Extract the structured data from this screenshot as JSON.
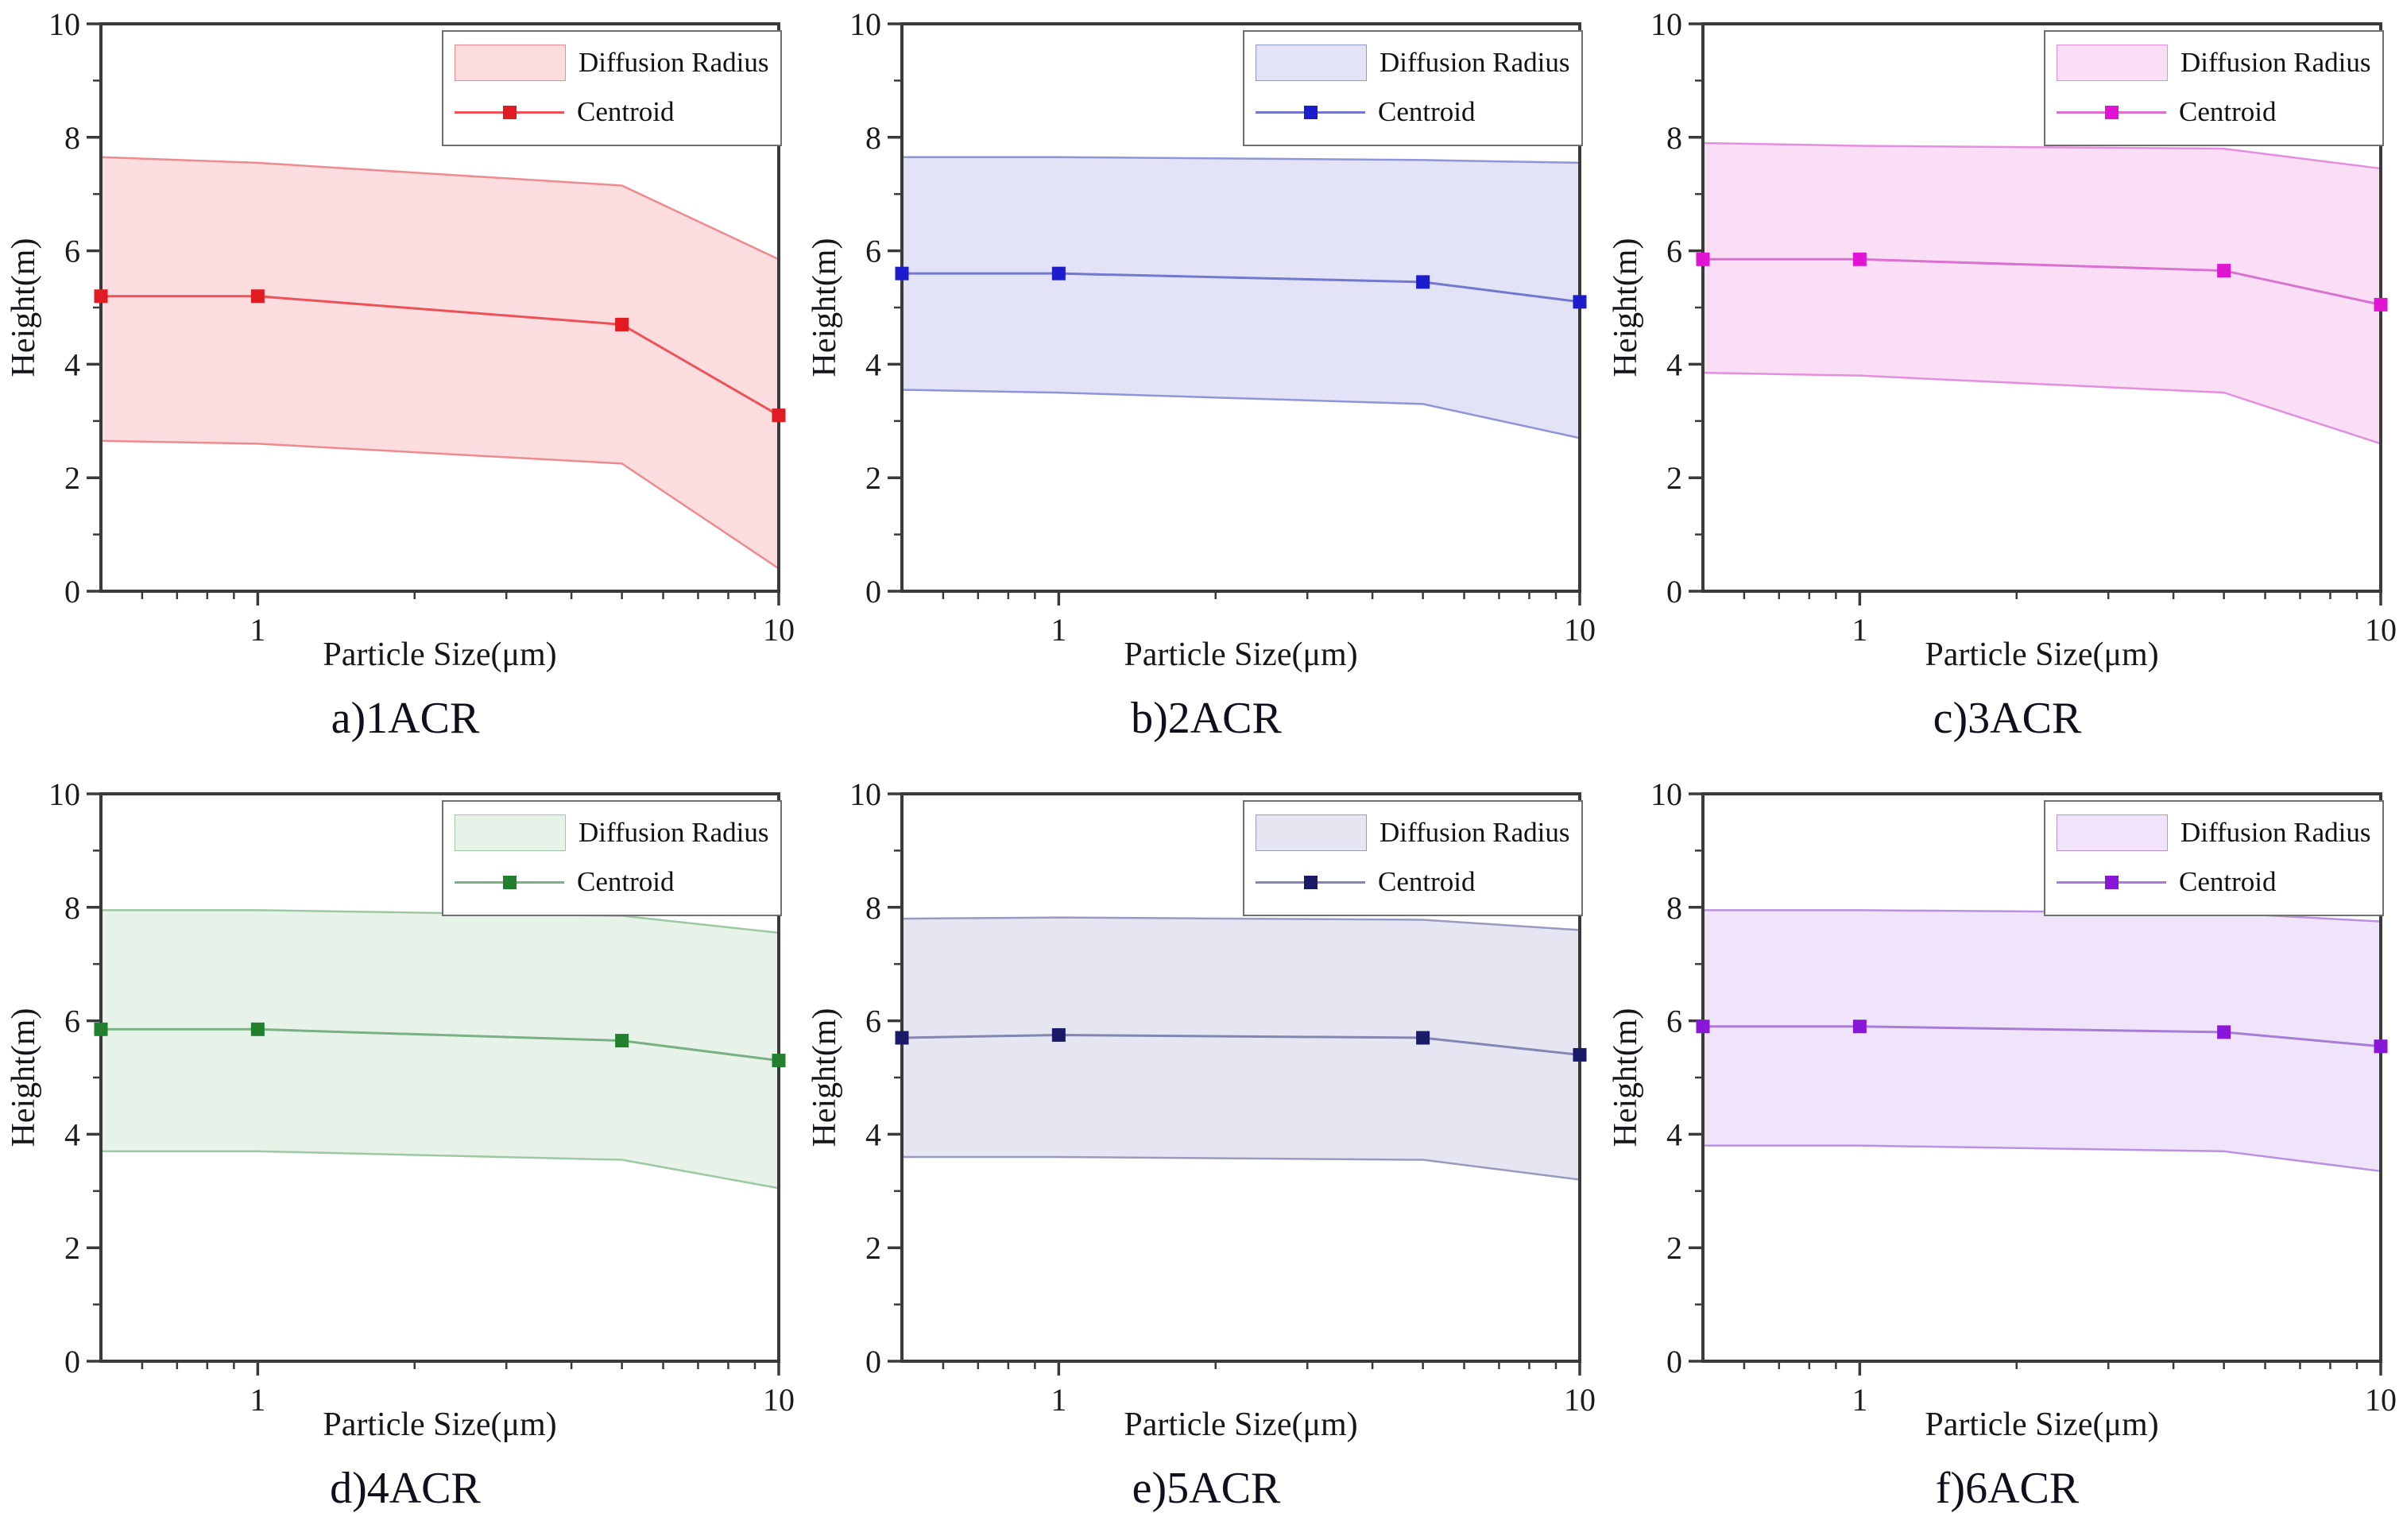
{
  "figure": {
    "xlabel": "Particle Size(μm)",
    "ylabel": "Height(m)",
    "legend_band_label": "Diffusion Radius",
    "legend_line_label": "Centroid",
    "axis_color": "#3a3a3a"
  },
  "chart_data": [
    {
      "id": "a",
      "caption": "a)1ACR",
      "type": "area",
      "x": [
        0.5,
        1,
        5,
        10
      ],
      "xscale": "log",
      "band_upper": [
        7.65,
        7.55,
        7.15,
        5.85
      ],
      "centroid": [
        5.2,
        5.2,
        4.7,
        3.1
      ],
      "band_lower": [
        2.65,
        2.6,
        2.25,
        0.4
      ],
      "xlim": [
        0.5,
        10
      ],
      "ylim": [
        0,
        10
      ],
      "xticks": [
        1,
        10
      ],
      "xminorticks": [
        0.6,
        0.7,
        0.8,
        0.9,
        2,
        3,
        4,
        5,
        6,
        7,
        8,
        9
      ],
      "yticks": [
        0,
        2,
        4,
        6,
        8,
        10
      ],
      "yminorticks": [
        1,
        3,
        5,
        7,
        9
      ],
      "xlabel": "Particle Size(μm)",
      "ylabel": "Height(m)",
      "legend": [
        "Diffusion Radius",
        "Centroid"
      ],
      "colors": {
        "marker": "#e01b22",
        "line": "#ee5158",
        "band_edge": "#ef8a8e",
        "band_fill": "#fbdde0"
      }
    },
    {
      "id": "b",
      "caption": "b)2ACR",
      "type": "area",
      "x": [
        0.5,
        1,
        5,
        10
      ],
      "xscale": "log",
      "band_upper": [
        7.65,
        7.65,
        7.6,
        7.55
      ],
      "centroid": [
        5.6,
        5.6,
        5.45,
        5.1
      ],
      "band_lower": [
        3.55,
        3.5,
        3.3,
        2.7
      ],
      "xlim": [
        0.5,
        10
      ],
      "ylim": [
        0,
        10
      ],
      "xticks": [
        1,
        10
      ],
      "xminorticks": [
        0.6,
        0.7,
        0.8,
        0.9,
        2,
        3,
        4,
        5,
        6,
        7,
        8,
        9
      ],
      "yticks": [
        0,
        2,
        4,
        6,
        8,
        10
      ],
      "yminorticks": [
        1,
        3,
        5,
        7,
        9
      ],
      "xlabel": "Particle Size(μm)",
      "ylabel": "Height(m)",
      "legend": [
        "Diffusion Radius",
        "Centroid"
      ],
      "colors": {
        "marker": "#1c1ccd",
        "line": "#7277cf",
        "band_edge": "#9094da",
        "band_fill": "#e2e3f7"
      }
    },
    {
      "id": "c",
      "caption": "c)3ACR",
      "type": "area",
      "x": [
        0.5,
        1,
        5,
        10
      ],
      "xscale": "log",
      "band_upper": [
        7.9,
        7.85,
        7.8,
        7.45
      ],
      "centroid": [
        5.85,
        5.85,
        5.65,
        5.05
      ],
      "band_lower": [
        3.85,
        3.8,
        3.5,
        2.6
      ],
      "xlim": [
        0.5,
        10
      ],
      "ylim": [
        0,
        10
      ],
      "xticks": [
        1,
        10
      ],
      "xminorticks": [
        0.6,
        0.7,
        0.8,
        0.9,
        2,
        3,
        4,
        5,
        6,
        7,
        8,
        9
      ],
      "yticks": [
        0,
        2,
        4,
        6,
        8,
        10
      ],
      "yminorticks": [
        1,
        3,
        5,
        7,
        9
      ],
      "xlabel": "Particle Size(μm)",
      "ylabel": "Height(m)",
      "legend": [
        "Diffusion Radius",
        "Centroid"
      ],
      "colors": {
        "marker": "#e214d4",
        "line": "#da70d0",
        "band_edge": "#e48ede",
        "band_fill": "#fadef6"
      }
    },
    {
      "id": "d",
      "caption": "d)4ACR",
      "type": "area",
      "x": [
        0.5,
        1,
        5,
        10
      ],
      "xscale": "log",
      "band_upper": [
        7.95,
        7.95,
        7.85,
        7.55
      ],
      "centroid": [
        5.85,
        5.85,
        5.65,
        5.3
      ],
      "band_lower": [
        3.7,
        3.7,
        3.55,
        3.05
      ],
      "xlim": [
        0.5,
        10
      ],
      "ylim": [
        0,
        10
      ],
      "xticks": [
        1,
        10
      ],
      "xminorticks": [
        0.6,
        0.7,
        0.8,
        0.9,
        2,
        3,
        4,
        5,
        6,
        7,
        8,
        9
      ],
      "yticks": [
        0,
        2,
        4,
        6,
        8,
        10
      ],
      "yminorticks": [
        1,
        3,
        5,
        7,
        9
      ],
      "xlabel": "Particle Size(μm)",
      "ylabel": "Height(m)",
      "legend": [
        "Diffusion Radius",
        "Centroid"
      ],
      "colors": {
        "marker": "#217f2e",
        "line": "#79b184",
        "band_edge": "#9cc8a3",
        "band_fill": "#e7f3e8"
      }
    },
    {
      "id": "e",
      "caption": "e)5ACR",
      "type": "area",
      "x": [
        0.5,
        1,
        5,
        10
      ],
      "xscale": "log",
      "band_upper": [
        7.8,
        7.82,
        7.78,
        7.6
      ],
      "centroid": [
        5.7,
        5.75,
        5.7,
        5.4
      ],
      "band_lower": [
        3.6,
        3.6,
        3.55,
        3.2
      ],
      "xlim": [
        0.5,
        10
      ],
      "ylim": [
        0,
        10
      ],
      "xticks": [
        1,
        10
      ],
      "xminorticks": [
        0.6,
        0.7,
        0.8,
        0.9,
        2,
        3,
        4,
        5,
        6,
        7,
        8,
        9
      ],
      "yticks": [
        0,
        2,
        4,
        6,
        8,
        10
      ],
      "yminorticks": [
        1,
        3,
        5,
        7,
        9
      ],
      "xlabel": "Particle Size(μm)",
      "ylabel": "Height(m)",
      "legend": [
        "Diffusion Radius",
        "Centroid"
      ],
      "colors": {
        "marker": "#1a1a68",
        "line": "#8386b2",
        "band_edge": "#989ac0",
        "band_fill": "#e5e6f2"
      }
    },
    {
      "id": "f",
      "caption": "f)6ACR",
      "type": "area",
      "x": [
        0.5,
        1,
        5,
        10
      ],
      "xscale": "log",
      "band_upper": [
        7.95,
        7.95,
        7.9,
        7.75
      ],
      "centroid": [
        5.9,
        5.9,
        5.8,
        5.55
      ],
      "band_lower": [
        3.8,
        3.8,
        3.7,
        3.35
      ],
      "xlim": [
        0.5,
        10
      ],
      "ylim": [
        0,
        10
      ],
      "xticks": [
        1,
        10
      ],
      "xminorticks": [
        0.6,
        0.7,
        0.8,
        0.9,
        2,
        3,
        4,
        5,
        6,
        7,
        8,
        9
      ],
      "yticks": [
        0,
        2,
        4,
        6,
        8,
        10
      ],
      "yminorticks": [
        1,
        3,
        5,
        7,
        9
      ],
      "xlabel": "Particle Size(μm)",
      "ylabel": "Height(m)",
      "legend": [
        "Diffusion Radius",
        "Centroid"
      ],
      "colors": {
        "marker": "#8a16d8",
        "line": "#a97bd8",
        "band_edge": "#bb90e4",
        "band_fill": "#f0e4fa"
      }
    }
  ]
}
